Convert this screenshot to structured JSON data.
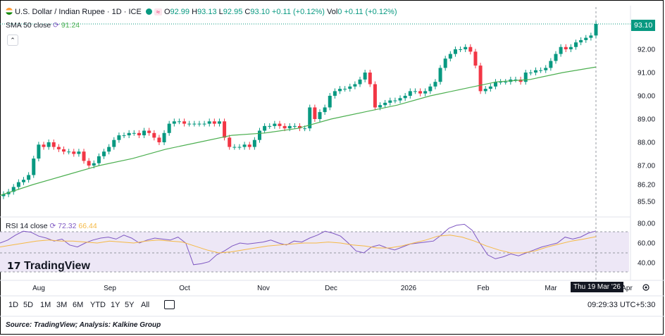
{
  "header": {
    "symbol": "U.S. Dollar / Indian Rupee · 1D · ICE",
    "open_label": "O",
    "open": "92.99",
    "high_label": "H",
    "high": "93.13",
    "low_label": "L",
    "low": "92.95",
    "close_label": "C",
    "close": "93.10",
    "change": "+0.11 (+0.12%)",
    "vol_label": "Vol",
    "vol": "0",
    "vol_change": "+0.11 (+0.12%)"
  },
  "sma": {
    "label": "SMA 50 close",
    "value": "91.24",
    "color": "#4caf50"
  },
  "rsi": {
    "label": "RSI 14 close",
    "value": "72.32",
    "ma_value": "66.44",
    "line_color": "#7e57c2",
    "ma_color": "#f5b945"
  },
  "price_tag": "93.10",
  "date_tag": "Thu 19 Mar '26",
  "logo": "TradingView",
  "timeframes": [
    "1D",
    "5D",
    "1M",
    "3M",
    "6M",
    "YTD",
    "1Y",
    "5Y",
    "All"
  ],
  "clock": "09:29:33 UTC+5:30",
  "source": "Source: TradingView; Analysis: Kalkine Group",
  "chart_data": {
    "type": "candlestick",
    "price_axis": [
      "93.10",
      "92.00",
      "91.00",
      "90.00",
      "89.00",
      "88.00",
      "87.00",
      "86.20",
      "85.50"
    ],
    "rsi_axis": [
      "80.00",
      "60.00",
      "40.00"
    ],
    "x_axis": [
      "Aug",
      "Sep",
      "Oct",
      "Nov",
      "Dec",
      "2026",
      "Feb",
      "Mar",
      "Apr"
    ],
    "close_path": [
      85.8,
      85.9,
      86.1,
      86.3,
      86.4,
      86.6,
      87.3,
      87.9,
      87.8,
      88.0,
      87.8,
      87.7,
      87.6,
      87.6,
      87.5,
      87.6,
      87.2,
      87.0,
      87.1,
      87.4,
      87.6,
      87.8,
      88.1,
      88.3,
      88.3,
      88.4,
      88.4,
      88.3,
      88.5,
      88.4,
      88.2,
      88.0,
      88.4,
      88.8,
      88.9,
      88.9,
      88.8,
      88.8,
      88.8,
      88.8,
      88.8,
      88.9,
      88.8,
      88.9,
      88.2,
      87.8,
      87.8,
      87.8,
      87.9,
      87.8,
      88.1,
      88.5,
      88.7,
      88.7,
      88.8,
      88.7,
      88.6,
      88.7,
      88.7,
      88.6,
      88.6,
      89.5,
      89.0,
      89.3,
      89.5,
      90.0,
      90.2,
      90.3,
      90.3,
      90.4,
      90.5,
      90.7,
      91.0,
      90.5,
      89.5,
      89.6,
      89.7,
      89.8,
      89.8,
      89.9,
      90.0,
      90.2,
      90.2,
      90.1,
      90.2,
      90.4,
      90.6,
      91.2,
      91.6,
      91.8,
      92.0,
      92.0,
      92.1,
      91.9,
      91.3,
      90.2,
      90.3,
      90.4,
      90.6,
      90.6,
      90.6,
      90.7,
      90.7,
      90.6,
      91.0,
      91.0,
      91.1,
      91.1,
      91.2,
      91.5,
      91.8,
      92.1,
      92.0,
      92.1,
      92.3,
      92.4,
      92.5,
      92.6,
      93.1
    ],
    "sma50": [
      85.75,
      86.2,
      86.6,
      87.0,
      87.3,
      87.7,
      88.0,
      88.3,
      88.4,
      88.6,
      89.0,
      89.3,
      89.6,
      90.0,
      90.3,
      90.6,
      90.7,
      91.0,
      91.24
    ],
    "rsi14": [
      60,
      63,
      68,
      72,
      71,
      67,
      65,
      62,
      64,
      58,
      56,
      60,
      63,
      65,
      66,
      64,
      68,
      65,
      60,
      63,
      65,
      64,
      63,
      66,
      60,
      38,
      39,
      41,
      48,
      52,
      57,
      60,
      59,
      60,
      61,
      63,
      60,
      58,
      62,
      61,
      65,
      68,
      72,
      70,
      67,
      60,
      52,
      50,
      56,
      58,
      55,
      53,
      56,
      59,
      60,
      61,
      62,
      68,
      75,
      78,
      79,
      73,
      60,
      48,
      44,
      46,
      49,
      47,
      50,
      53,
      56,
      58,
      60,
      66,
      64,
      66,
      70,
      72.32
    ],
    "rsi_ma": [
      56,
      58,
      60,
      62,
      63,
      62,
      62,
      61,
      60,
      62,
      61,
      60,
      62,
      63,
      62,
      61,
      57,
      53,
      50,
      51,
      53,
      55,
      57,
      58,
      59,
      60,
      60,
      61,
      60,
      58,
      57,
      55,
      55,
      57,
      60,
      63,
      67,
      68,
      66,
      62,
      57,
      53,
      50,
      50,
      52,
      56,
      59,
      62,
      64,
      66.44
    ]
  }
}
